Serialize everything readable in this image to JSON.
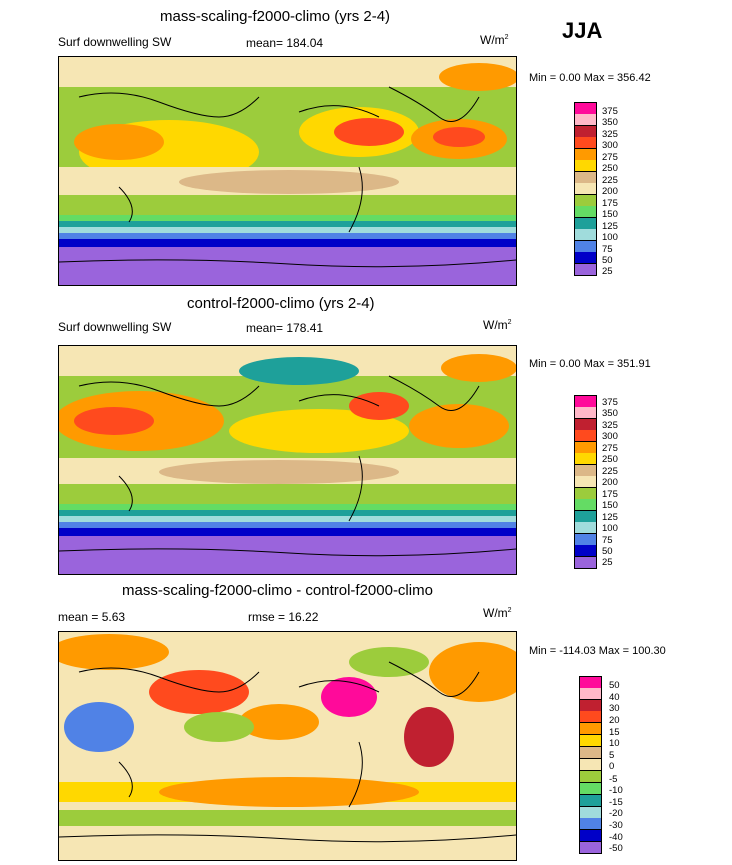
{
  "season": "JJA",
  "panels": [
    {
      "title": "mass-scaling-f2000-climo (yrs 2-4)",
      "left_label": "Surf downwelling SW",
      "center_label": "mean= 184.04",
      "units_base": "W/m",
      "units_exp": "2",
      "minmax": "Min =   0.00 Max = 356.42",
      "levels": [
        "375",
        "350",
        "325",
        "300",
        "275",
        "250",
        "225",
        "200",
        "175",
        "150",
        "125",
        "100",
        "75",
        "50",
        "25"
      ]
    },
    {
      "title": "control-f2000-climo (yrs 2-4)",
      "left_label": "Surf downwelling SW",
      "center_label": "mean= 178.41",
      "units_base": "W/m",
      "units_exp": "2",
      "minmax": "Min =   0.00 Max = 351.91",
      "levels": [
        "375",
        "350",
        "325",
        "300",
        "275",
        "250",
        "225",
        "200",
        "175",
        "150",
        "125",
        "100",
        "75",
        "50",
        "25"
      ]
    },
    {
      "title": "mass-scaling-f2000-climo - control-f2000-climo",
      "left_label": "mean =   5.63",
      "center_label": "rmse =  16.22",
      "units_base": "W/m",
      "units_exp": "2",
      "minmax": "Min = -114.03 Max = 100.30",
      "levels": [
        "50",
        "40",
        "30",
        "20",
        "15",
        "10",
        "5",
        "0",
        "-5",
        "-10",
        "-15",
        "-20",
        "-30",
        "-40",
        "-50"
      ]
    }
  ],
  "colors": {
    "abs_scale": [
      "#ff0a9a",
      "#ffb8c8",
      "#c02030",
      "#ff4a1e",
      "#ff9a00",
      "#ffd800",
      "#dcb888",
      "#f6e6b4",
      "#9ccc3c",
      "#64dc64",
      "#1ea09a",
      "#a0dcdc",
      "#5082e6",
      "#0000c8",
      "#9a64dc"
    ],
    "diff_scale": [
      "#ff0a9a",
      "#ffb8c8",
      "#c02030",
      "#ff4a1e",
      "#ff9a00",
      "#ffd800",
      "#dcb888",
      "#f6e6b4",
      "#9ccc3c",
      "#64dc64",
      "#1ea09a",
      "#a0dcdc",
      "#5082e6",
      "#0000c8",
      "#9a64dc"
    ]
  },
  "chart_data": [
    {
      "type": "heatmap",
      "title": "mass-scaling-f2000-climo (yrs 2-4)",
      "variable": "Surf downwelling SW",
      "units": "W/m2",
      "mean": 184.04,
      "min": 0.0,
      "max": 356.42,
      "contour_levels": [
        25,
        50,
        75,
        100,
        125,
        150,
        175,
        200,
        225,
        250,
        275,
        300,
        325,
        350,
        375
      ]
    },
    {
      "type": "heatmap",
      "title": "control-f2000-climo (yrs 2-4)",
      "variable": "Surf downwelling SW",
      "units": "W/m2",
      "mean": 178.41,
      "min": 0.0,
      "max": 351.91,
      "contour_levels": [
        25,
        50,
        75,
        100,
        125,
        150,
        175,
        200,
        225,
        250,
        275,
        300,
        325,
        350,
        375
      ]
    },
    {
      "type": "heatmap",
      "title": "mass-scaling-f2000-climo - control-f2000-climo",
      "units": "W/m2",
      "mean": 5.63,
      "rmse": 16.22,
      "min": -114.03,
      "max": 100.3,
      "contour_levels": [
        -50,
        -40,
        -30,
        -20,
        -15,
        -10,
        -5,
        0,
        5,
        10,
        15,
        20,
        30,
        40,
        50
      ]
    }
  ]
}
